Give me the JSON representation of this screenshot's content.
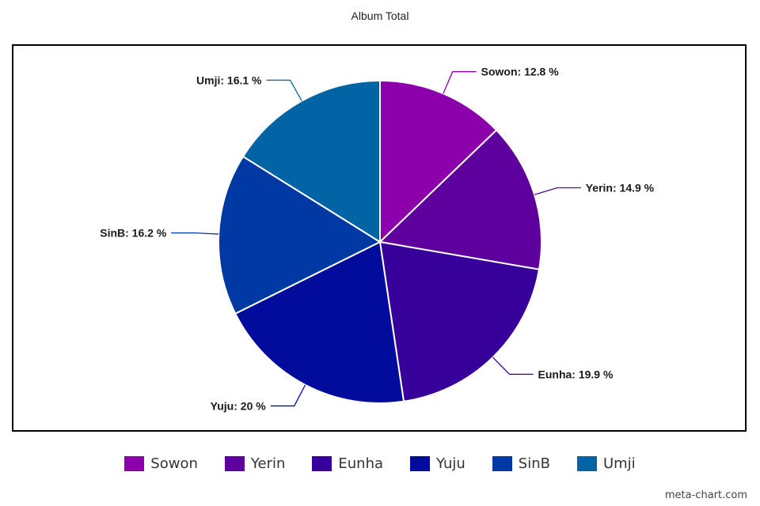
{
  "chart_data": {
    "type": "pie",
    "title": "Album Total",
    "unit": "%",
    "slices": [
      {
        "label": "Sowon",
        "value": 12.8,
        "display": "Sowon: 12.8 %",
        "color": "#8B00AA"
      },
      {
        "label": "Yerin",
        "value": 14.9,
        "display": "Yerin: 14.9 %",
        "color": "#5E009E"
      },
      {
        "label": "Eunha",
        "value": 19.9,
        "display": "Eunha: 19.9 %",
        "color": "#37009A"
      },
      {
        "label": "Yuju",
        "value": 20,
        "display": "Yuju: 20 %",
        "color": "#020C9C"
      },
      {
        "label": "SinB",
        "value": 16.2,
        "display": "SinB: 16.2 %",
        "color": "#0039A3"
      },
      {
        "label": "Umji",
        "value": 16.1,
        "display": "Umji: 16.1 %",
        "color": "#0264A4"
      }
    ],
    "start_angle": "top",
    "direction": "clockwise",
    "legend_position": "bottom"
  },
  "watermark": "meta-chart.com"
}
